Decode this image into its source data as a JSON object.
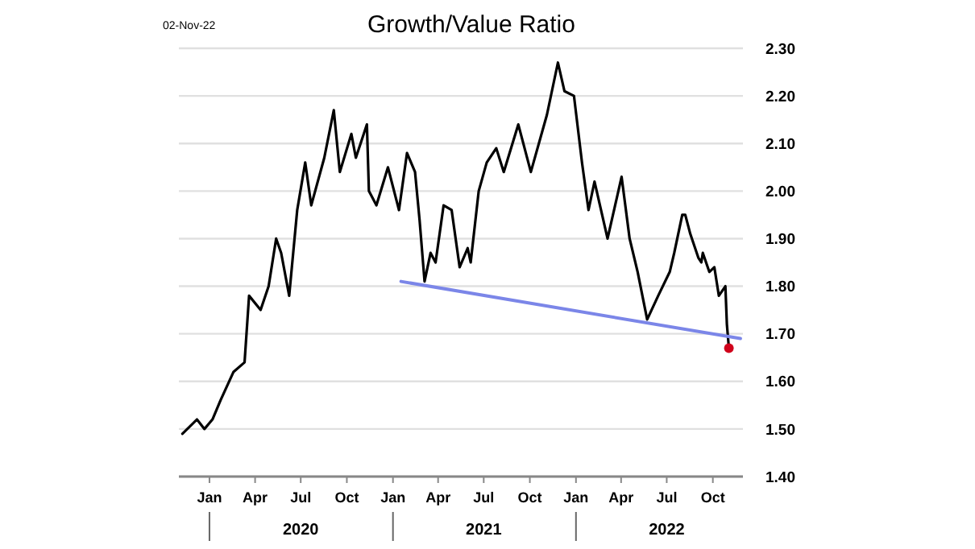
{
  "chart_data": {
    "type": "line",
    "title": "Growth/Value Ratio",
    "annotations": [
      "02-Nov-22",
      "2020",
      "2021",
      "2022"
    ],
    "xlim": [
      "2019-11-01",
      "2022-11-30"
    ],
    "xticks": [
      {
        "value": "2020-01-01",
        "label": "Jan"
      },
      {
        "value": "2020-04-01",
        "label": "Apr"
      },
      {
        "value": "2020-07-01",
        "label": "Jul"
      },
      {
        "value": "2020-10-01",
        "label": "Oct"
      },
      {
        "value": "2021-01-01",
        "label": "Jan"
      },
      {
        "value": "2021-04-01",
        "label": "Apr"
      },
      {
        "value": "2021-07-01",
        "label": "Jul"
      },
      {
        "value": "2021-10-01",
        "label": "Oct"
      },
      {
        "value": "2022-01-01",
        "label": "Jan"
      },
      {
        "value": "2022-04-01",
        "label": "Apr"
      },
      {
        "value": "2022-07-01",
        "label": "Jul"
      },
      {
        "value": "2022-10-01",
        "label": "Oct"
      }
    ],
    "ylim": [
      1.4,
      2.3
    ],
    "yticks": [
      {
        "value": 1.4,
        "label": "1.40"
      },
      {
        "value": 1.5,
        "label": "1.50"
      },
      {
        "value": 1.6,
        "label": "1.60"
      },
      {
        "value": 1.7,
        "label": "1.70"
      },
      {
        "value": 1.8,
        "label": "1.80"
      },
      {
        "value": 1.9,
        "label": "1.90"
      },
      {
        "value": 2.0,
        "label": "2.00"
      },
      {
        "value": 2.1,
        "label": "2.10"
      },
      {
        "value": 2.2,
        "label": "2.20"
      },
      {
        "value": 2.3,
        "label": "2.30"
      }
    ],
    "grid": "y",
    "series": [
      {
        "color": "#000000",
        "x": [
          "2019-11-08",
          "2019-12-07",
          "2019-12-22",
          "2020-01-07",
          "2020-01-23",
          "2020-02-18",
          "2020-03-11",
          "2020-03-20",
          "2020-04-12",
          "2020-04-28",
          "2020-05-13",
          "2020-05-23",
          "2020-06-08",
          "2020-06-24",
          "2020-07-10",
          "2020-07-22",
          "2020-08-17",
          "2020-09-05",
          "2020-09-17",
          "2020-10-10",
          "2020-10-19",
          "2020-11-10",
          "2020-11-14",
          "2020-11-29",
          "2020-12-22",
          "2021-01-13",
          "2021-01-29",
          "2021-02-14",
          "2021-02-23",
          "2021-03-05",
          "2021-03-17",
          "2021-03-27",
          "2021-04-12",
          "2021-04-28",
          "2021-05-14",
          "2021-05-30",
          "2021-06-05",
          "2021-06-21",
          "2021-07-07",
          "2021-07-26",
          "2021-08-10",
          "2021-09-08",
          "2021-10-03",
          "2021-11-04",
          "2021-11-26",
          "2021-12-09",
          "2021-12-28",
          "2022-01-13",
          "2022-01-26",
          "2022-02-07",
          "2022-03-05",
          "2022-04-02",
          "2022-04-18",
          "2022-05-04",
          "2022-05-23",
          "2022-06-14",
          "2022-07-07",
          "2022-07-16",
          "2022-08-01",
          "2022-08-07",
          "2022-08-17",
          "2022-09-02",
          "2022-09-08",
          "2022-09-11",
          "2022-09-24",
          "2022-10-04",
          "2022-10-13",
          "2022-10-26",
          "2022-10-29",
          "2022-11-02"
        ],
        "values": [
          1.49,
          1.52,
          1.5,
          1.52,
          1.56,
          1.62,
          1.64,
          1.78,
          1.75,
          1.8,
          1.9,
          1.87,
          1.78,
          1.96,
          2.06,
          1.97,
          2.07,
          2.17,
          2.04,
          2.12,
          2.07,
          2.14,
          2.0,
          1.97,
          2.05,
          1.96,
          2.08,
          2.04,
          1.94,
          1.81,
          1.87,
          1.85,
          1.97,
          1.96,
          1.84,
          1.88,
          1.85,
          2.0,
          2.06,
          2.09,
          2.04,
          2.14,
          2.04,
          2.16,
          2.27,
          2.21,
          2.2,
          2.06,
          1.96,
          2.02,
          1.9,
          2.03,
          1.9,
          1.83,
          1.73,
          1.78,
          1.83,
          1.87,
          1.95,
          1.95,
          1.91,
          1.86,
          1.85,
          1.87,
          1.83,
          1.84,
          1.78,
          1.8,
          1.72,
          1.67
        ]
      },
      {
        "type": "line",
        "color": "#7b86e8",
        "x": [
          "2021-01-17",
          "2022-11-25"
        ],
        "values": [
          1.81,
          1.69
        ]
      },
      {
        "type": "scatter",
        "color": "#d0021b",
        "x": [
          "2022-11-02"
        ],
        "values": [
          1.67
        ]
      }
    ]
  }
}
